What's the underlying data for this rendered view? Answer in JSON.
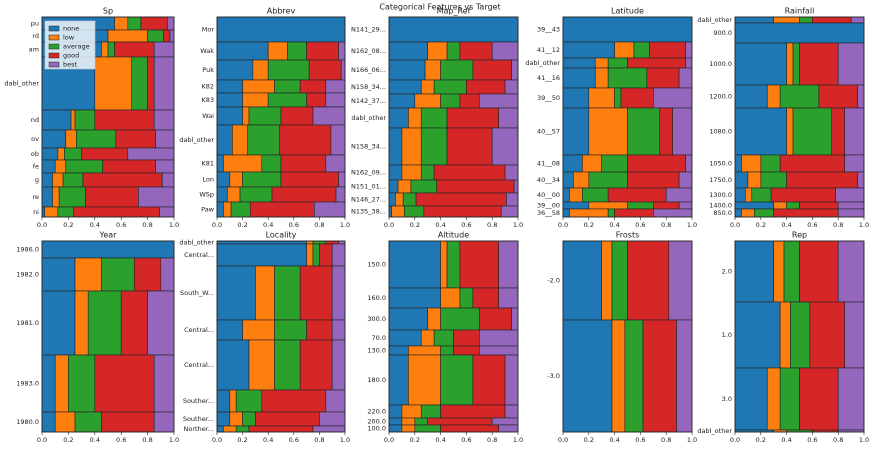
{
  "title": "Categorical Features vs Target",
  "classes": [
    {
      "name": "none",
      "color": "#1f77b4"
    },
    {
      "name": "low",
      "color": "#ff7f0e"
    },
    {
      "name": "average",
      "color": "#2ca02c"
    },
    {
      "name": "good",
      "color": "#d62728"
    },
    {
      "name": "best",
      "color": "#9467bd"
    }
  ],
  "chart_data": [
    {
      "type": "mosaic",
      "title": "Sp",
      "legend": true,
      "xlim": [
        0,
        1
      ],
      "xticks": [
        {
          "value": 0,
          "label": "0.0"
        },
        {
          "value": 0.2,
          "label": "0.2"
        },
        {
          "value": 0.4,
          "label": "0.4"
        },
        {
          "value": 0.6,
          "label": "0.6"
        },
        {
          "value": 0.8,
          "label": "0.8"
        },
        {
          "value": 1,
          "label": "1.0"
        }
      ],
      "categories": [
        "pu",
        "rd",
        "am",
        "dabl_other",
        "nd",
        "ov",
        "ob",
        "fe",
        "g",
        "re",
        "ni"
      ],
      "weights": [
        13,
        12,
        15,
        53,
        20,
        18,
        12,
        13,
        14,
        20,
        10
      ],
      "values": [
        [
          0.55,
          0.1,
          0.1,
          0.2,
          0.05
        ],
        [
          0.5,
          0.3,
          0.12,
          0.05,
          0.03
        ],
        [
          0.45,
          0.05,
          0.05,
          0.3,
          0.15
        ],
        [
          0.4,
          0.28,
          0.12,
          0.05,
          0.15
        ],
        [
          0.22,
          0.03,
          0.15,
          0.45,
          0.15
        ],
        [
          0.18,
          0.08,
          0.3,
          0.3,
          0.14
        ],
        [
          0.12,
          0.05,
          0.13,
          0.35,
          0.35
        ],
        [
          0.1,
          0.08,
          0.28,
          0.4,
          0.14
        ],
        [
          0.08,
          0.08,
          0.15,
          0.6,
          0.09
        ],
        [
          0.08,
          0.05,
          0.2,
          0.4,
          0.27
        ],
        [
          0.02,
          0.1,
          0.12,
          0.65,
          0.11
        ]
      ]
    },
    {
      "type": "mosaic",
      "title": "Abbrev",
      "xlim": [
        0,
        1
      ],
      "xticks": [
        {
          "value": 0,
          "label": "0.0"
        },
        {
          "value": 0.2,
          "label": "0.2"
        },
        {
          "value": 0.4,
          "label": "0.4"
        },
        {
          "value": 0.6,
          "label": "0.6"
        },
        {
          "value": 0.8,
          "label": "0.8"
        },
        {
          "value": 1,
          "label": "1.0"
        }
      ],
      "categories": [
        "Mor",
        "Wak",
        "Puk",
        "K82",
        "K83",
        "Wai",
        "dabl_other",
        "K81",
        "Lon",
        "WSp",
        "Paw"
      ],
      "weights": [
        25,
        18,
        20,
        13,
        14,
        18,
        30,
        17,
        15,
        15,
        15
      ],
      "values": [
        [
          1,
          0,
          0,
          0,
          0
        ],
        [
          0.4,
          0.15,
          0.15,
          0.25,
          0.05
        ],
        [
          0.28,
          0.12,
          0.32,
          0.25,
          0.03
        ],
        [
          0.2,
          0.25,
          0.2,
          0.2,
          0.15
        ],
        [
          0.2,
          0.2,
          0.3,
          0.15,
          0.15
        ],
        [
          0.2,
          0.05,
          0.25,
          0.25,
          0.25
        ],
        [
          0.12,
          0.12,
          0.25,
          0.4,
          0.11
        ],
        [
          0.05,
          0.3,
          0.15,
          0.35,
          0.15
        ],
        [
          0.1,
          0.1,
          0.3,
          0.45,
          0.05
        ],
        [
          0.08,
          0.1,
          0.25,
          0.5,
          0.07
        ],
        [
          0.05,
          0.06,
          0.15,
          0.5,
          0.24
        ]
      ]
    },
    {
      "type": "mosaic",
      "title": "Map_Ref",
      "xlim": [
        0,
        1
      ],
      "xticks": [
        {
          "value": 0,
          "label": "0.0"
        },
        {
          "value": 0.2,
          "label": "0.2"
        },
        {
          "value": 0.4,
          "label": "0.4"
        },
        {
          "value": 0.6,
          "label": "0.6"
        },
        {
          "value": 0.8,
          "label": "0.8"
        },
        {
          "value": 1,
          "label": "1.0"
        }
      ],
      "categories": [
        "N141_29...",
        "N162_08...",
        "N166_06...",
        "N158_34...",
        "N142_37...",
        "dabl_other",
        "N158_34...",
        "N162_09...",
        "N151_01...",
        "N146_27...",
        "N135_38..."
      ],
      "weights": [
        25,
        18,
        20,
        14,
        14,
        20,
        37,
        15,
        13,
        13,
        11
      ],
      "values": [
        [
          1,
          0,
          0,
          0,
          0
        ],
        [
          0.3,
          0.15,
          0.1,
          0.25,
          0.2
        ],
        [
          0.28,
          0.12,
          0.25,
          0.3,
          0.05
        ],
        [
          0.25,
          0.1,
          0.25,
          0.3,
          0.1
        ],
        [
          0.2,
          0.2,
          0.15,
          0.15,
          0.3
        ],
        [
          0.15,
          0.1,
          0.2,
          0.4,
          0.15
        ],
        [
          0.1,
          0.15,
          0.2,
          0.35,
          0.2
        ],
        [
          0.1,
          0.15,
          0.1,
          0.55,
          0.1
        ],
        [
          0.07,
          0.1,
          0.2,
          0.6,
          0.03
        ],
        [
          0.05,
          0.06,
          0.1,
          0.7,
          0.09
        ],
        [
          0.02,
          0.1,
          0.15,
          0.6,
          0.13
        ]
      ]
    },
    {
      "type": "mosaic",
      "title": "Latitude",
      "xlim": [
        0,
        1
      ],
      "xticks": [
        {
          "value": 0,
          "label": "0.0"
        },
        {
          "value": 0.2,
          "label": "0.2"
        },
        {
          "value": 0.4,
          "label": "0.4"
        },
        {
          "value": 0.6,
          "label": "0.6"
        },
        {
          "value": 0.8,
          "label": "0.8"
        },
        {
          "value": 1,
          "label": "1.0"
        }
      ],
      "categories": [
        "39__43",
        "41__12",
        "dabl_other",
        "41__16",
        "39__50",
        "40__57",
        "41__08",
        "40__34",
        "40__00",
        "39__00",
        "36__58"
      ],
      "weights": [
        25,
        16,
        10,
        20,
        20,
        47,
        17,
        16,
        14,
        7,
        8
      ],
      "values": [
        [
          1,
          0,
          0,
          0,
          0
        ],
        [
          0.4,
          0.15,
          0.12,
          0.28,
          0.05
        ],
        [
          0.25,
          0.1,
          0.15,
          0.45,
          0.05
        ],
        [
          0.25,
          0.1,
          0.3,
          0.25,
          0.1
        ],
        [
          0.2,
          0.2,
          0.05,
          0.25,
          0.3
        ],
        [
          0.2,
          0.3,
          0.25,
          0.1,
          0.15
        ],
        [
          0.15,
          0.15,
          0.2,
          0.45,
          0.05
        ],
        [
          0.08,
          0.12,
          0.3,
          0.4,
          0.1
        ],
        [
          0.05,
          0.1,
          0.2,
          0.45,
          0.2
        ],
        [
          0.2,
          0.3,
          0.2,
          0.2,
          0.1
        ],
        [
          0.05,
          0.3,
          0.05,
          0.3,
          0.3
        ]
      ]
    },
    {
      "type": "mosaic",
      "title": "Rainfall",
      "xlim": [
        0,
        1
      ],
      "xticks": [
        {
          "value": 0,
          "label": "0.0"
        },
        {
          "value": 0.2,
          "label": "0.2"
        },
        {
          "value": 0.4,
          "label": "0.4"
        },
        {
          "value": 0.6,
          "label": "0.6"
        },
        {
          "value": 0.8,
          "label": "0.8"
        },
        {
          "value": 1,
          "label": "1.0"
        }
      ],
      "categories": [
        "dabl_other",
        "900.0",
        "1000.0",
        "1200.0",
        "1080.0",
        "1050.0",
        "1750.0",
        "1300.0",
        "1400.0",
        "850.0"
      ],
      "weights": [
        6,
        20,
        42,
        23,
        47,
        17,
        16,
        14,
        7,
        8
      ],
      "values": [
        [
          0.3,
          0.2,
          0.1,
          0.3,
          0.1
        ],
        [
          1,
          0,
          0,
          0,
          0
        ],
        [
          0.4,
          0.05,
          0.05,
          0.3,
          0.2
        ],
        [
          0.25,
          0.1,
          0.3,
          0.3,
          0.05
        ],
        [
          0.4,
          0.05,
          0.3,
          0.1,
          0.15
        ],
        [
          0.05,
          0.15,
          0.15,
          0.5,
          0.15
        ],
        [
          0.1,
          0.1,
          0.2,
          0.55,
          0.05
        ],
        [
          0.08,
          0.05,
          0.15,
          0.5,
          0.22
        ],
        [
          0.3,
          0.1,
          0.1,
          0.3,
          0.2
        ],
        [
          0.05,
          0.1,
          0.15,
          0.5,
          0.2
        ]
      ]
    },
    {
      "type": "mosaic",
      "title": "Year",
      "xlim": [
        0,
        1
      ],
      "xticks": [
        {
          "value": 0,
          "label": "0.0"
        },
        {
          "value": 0.2,
          "label": "0.2"
        },
        {
          "value": 0.4,
          "label": "0.4"
        },
        {
          "value": 0.6,
          "label": "0.6"
        },
        {
          "value": 0.8,
          "label": "0.8"
        },
        {
          "value": 1,
          "label": "1.0"
        }
      ],
      "categories": [
        "1986.0",
        "1982.0",
        "1981.0",
        "1983.0",
        "1980.0"
      ],
      "weights": [
        17,
        33,
        64,
        57,
        20
      ],
      "values": [
        [
          1,
          0,
          0,
          0,
          0
        ],
        [
          0.25,
          0.2,
          0.25,
          0.2,
          0.1
        ],
        [
          0.25,
          0.1,
          0.25,
          0.2,
          0.2
        ],
        [
          0.1,
          0.1,
          0.2,
          0.45,
          0.15
        ],
        [
          0.1,
          0.15,
          0.2,
          0.4,
          0.15
        ]
      ]
    },
    {
      "type": "mosaic",
      "title": "Locality",
      "xlim": [
        0,
        1
      ],
      "xticks": [
        {
          "value": 0,
          "label": "0.0"
        },
        {
          "value": 0.2,
          "label": "0.2"
        },
        {
          "value": 0.4,
          "label": "0.4"
        },
        {
          "value": 0.6,
          "label": "0.6"
        },
        {
          "value": 0.8,
          "label": "0.8"
        },
        {
          "value": 1,
          "label": "1.0"
        }
      ],
      "categories": [
        "dabl_other",
        "Central...",
        "South_W...",
        "Central...",
        "Central...",
        "Souther...",
        "Souther...",
        "Norther..."
      ],
      "weights": [
        3,
        22,
        54,
        20,
        50,
        22,
        14,
        6
      ],
      "values": [
        [
          0.7,
          0.05,
          0.1,
          0.1,
          0.05
        ],
        [
          0.7,
          0.05,
          0.05,
          0.1,
          0.1
        ],
        [
          0.3,
          0.15,
          0.2,
          0.25,
          0.1
        ],
        [
          0.2,
          0.25,
          0.25,
          0.2,
          0.1
        ],
        [
          0.25,
          0.2,
          0.2,
          0.25,
          0.1
        ],
        [
          0.1,
          0.05,
          0.2,
          0.5,
          0.15
        ],
        [
          0.1,
          0.1,
          0.1,
          0.5,
          0.2
        ],
        [
          0.05,
          0.1,
          0.1,
          0.5,
          0.25
        ]
      ]
    },
    {
      "type": "mosaic",
      "title": "Altitude",
      "xlim": [
        0,
        1
      ],
      "xticks": [
        {
          "value": 0,
          "label": "0.0"
        },
        {
          "value": 0.2,
          "label": "0.2"
        },
        {
          "value": 0.4,
          "label": "0.4"
        },
        {
          "value": 0.6,
          "label": "0.6"
        },
        {
          "value": 0.8,
          "label": "0.8"
        },
        {
          "value": 1,
          "label": "1.0"
        }
      ],
      "categories": [
        "150.0",
        "160.0",
        "300.0",
        "70.0",
        "130.0",
        "180.0",
        "220.0",
        "200.0",
        "100.0"
      ],
      "weights": [
        47,
        20,
        22,
        16,
        9,
        50,
        13,
        7,
        7
      ],
      "values": [
        [
          0.4,
          0.05,
          0.1,
          0.3,
          0.15
        ],
        [
          0.4,
          0.15,
          0.1,
          0.2,
          0.15
        ],
        [
          0.3,
          0.1,
          0.3,
          0.25,
          0.05
        ],
        [
          0.25,
          0.1,
          0.15,
          0.2,
          0.3
        ],
        [
          0.15,
          0.25,
          0.1,
          0.2,
          0.3
        ],
        [
          0.15,
          0.25,
          0.25,
          0.25,
          0.1
        ],
        [
          0.1,
          0.15,
          0.15,
          0.5,
          0.1
        ],
        [
          0.1,
          0.1,
          0.1,
          0.5,
          0.2
        ],
        [
          0.1,
          0.1,
          0.2,
          0.45,
          0.15
        ]
      ]
    },
    {
      "type": "mosaic",
      "title": "Frosts",
      "xlim": [
        0,
        1
      ],
      "xticks": [
        {
          "value": 0,
          "label": "0.0"
        },
        {
          "value": 0.2,
          "label": "0.2"
        },
        {
          "value": 0.4,
          "label": "0.4"
        },
        {
          "value": 0.6,
          "label": "0.6"
        },
        {
          "value": 0.8,
          "label": "0.8"
        },
        {
          "value": 1,
          "label": "1.0"
        }
      ],
      "categories": [
        "-2.0",
        "-3.0"
      ],
      "weights": [
        79,
        112
      ],
      "values": [
        [
          0.3,
          0.08,
          0.12,
          0.32,
          0.18
        ],
        [
          0.38,
          0.1,
          0.14,
          0.26,
          0.12
        ]
      ]
    },
    {
      "type": "mosaic",
      "title": "Rep",
      "xlim": [
        0,
        1
      ],
      "xticks": [
        {
          "value": 0,
          "label": "0.0"
        },
        {
          "value": 0.2,
          "label": "0.2"
        },
        {
          "value": 0.4,
          "label": "0.4"
        },
        {
          "value": 0.6,
          "label": "0.6"
        },
        {
          "value": 0.8,
          "label": "0.8"
        },
        {
          "value": 1,
          "label": "1.0"
        }
      ],
      "categories": [
        "2.0",
        "1.0",
        "3.0",
        "dabl_other"
      ],
      "weights": [
        61,
        66,
        62,
        2
      ],
      "values": [
        [
          0.3,
          0.08,
          0.12,
          0.3,
          0.2
        ],
        [
          0.35,
          0.08,
          0.15,
          0.27,
          0.15
        ],
        [
          0.25,
          0.1,
          0.15,
          0.3,
          0.2
        ],
        [
          0.3,
          0.1,
          0.2,
          0.2,
          0.2
        ]
      ]
    }
  ]
}
